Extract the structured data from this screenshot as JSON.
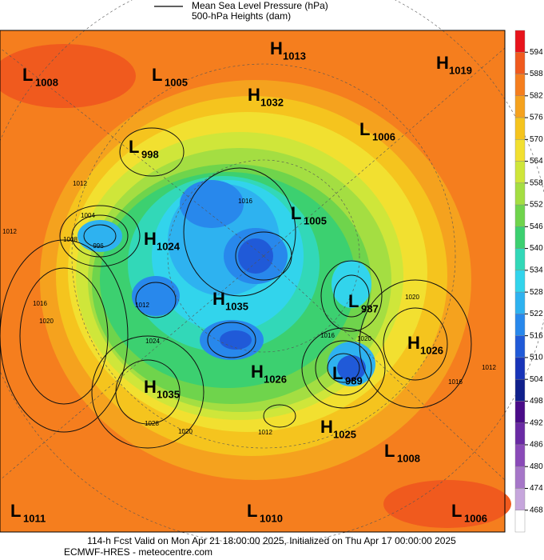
{
  "legend": {
    "items": [
      "Mean Sea Level Pressure (hPa)",
      "500-hPa Heights (dam)"
    ]
  },
  "colorbar": {
    "ticks": [
      594,
      588,
      582,
      576,
      570,
      564,
      558,
      552,
      546,
      540,
      534,
      528,
      522,
      516,
      510,
      504,
      498,
      492,
      486,
      480,
      474,
      468
    ],
    "colors": [
      "#e8141c",
      "#f05a1e",
      "#f57e1e",
      "#f5a21e",
      "#f5c41e",
      "#f2e030",
      "#cfe63a",
      "#a4de42",
      "#6fd44c",
      "#3cd070",
      "#32d8b8",
      "#32d4ec",
      "#2eb2f0",
      "#2888ec",
      "#205ad8",
      "#1834b8",
      "#10208c",
      "#4a0c88",
      "#6a2aa4",
      "#8a4ab8",
      "#a676c8",
      "#c6a6dc",
      "#ffffff"
    ]
  },
  "pressure_centers": [
    {
      "type": "L",
      "value": 1008
    },
    {
      "type": "L",
      "value": 1005
    },
    {
      "type": "H",
      "value": 1013
    },
    {
      "type": "H",
      "value": 1019
    },
    {
      "type": "H",
      "value": 1032
    },
    {
      "type": "L",
      "value": 1006
    },
    {
      "type": "L",
      "value": 998
    },
    {
      "type": "L",
      "value": 1005
    },
    {
      "type": "H",
      "value": 1024
    },
    {
      "type": "L",
      "value": 987
    },
    {
      "type": "H",
      "value": 1035
    },
    {
      "type": "H",
      "value": 1026
    },
    {
      "type": "L",
      "value": 989
    },
    {
      "type": "H",
      "value": 1026
    },
    {
      "type": "H",
      "value": 1035
    },
    {
      "type": "H",
      "value": 1025
    },
    {
      "type": "L",
      "value": 1008
    },
    {
      "type": "L",
      "value": 1011
    },
    {
      "type": "L",
      "value": 1010
    },
    {
      "type": "L",
      "value": 1006
    }
  ],
  "contour_labels": [
    1004,
    996,
    1008,
    1012,
    1016,
    1020,
    1012,
    1024,
    1028,
    1020,
    1012,
    1016,
    1016,
    1020,
    1012,
    1016,
    1020,
    1012
  ],
  "footer": {
    "line1": "114-h Fcst Valid on Mon Apr 21 18:00:00 2025, Initialized on Thu Apr 17 00:00:00 2025",
    "line2": "ECMWF-HRES  - meteocentre.com"
  }
}
